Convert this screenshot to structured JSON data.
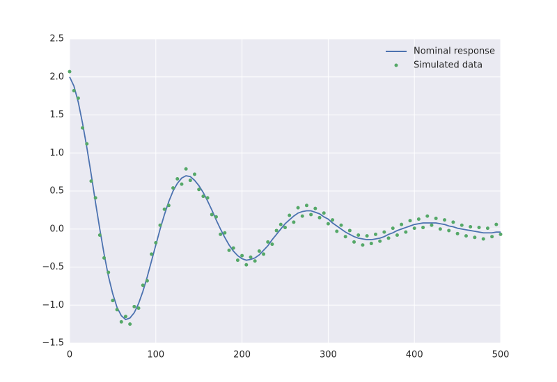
{
  "chart_data": {
    "type": "line",
    "x": [
      0,
      5,
      10,
      15,
      20,
      25,
      30,
      35,
      40,
      45,
      50,
      55,
      60,
      65,
      70,
      75,
      80,
      85,
      90,
      95,
      100,
      105,
      110,
      115,
      120,
      125,
      130,
      135,
      140,
      145,
      150,
      155,
      160,
      165,
      170,
      175,
      180,
      185,
      190,
      195,
      200,
      205,
      210,
      215,
      220,
      225,
      230,
      235,
      240,
      245,
      250,
      255,
      260,
      265,
      270,
      275,
      280,
      285,
      290,
      295,
      300,
      305,
      310,
      315,
      320,
      325,
      330,
      335,
      340,
      345,
      350,
      355,
      360,
      365,
      370,
      375,
      380,
      385,
      390,
      395,
      400,
      405,
      410,
      415,
      420,
      425,
      430,
      435,
      440,
      445,
      450,
      455,
      460,
      465,
      470,
      475,
      480,
      485,
      490,
      495,
      500
    ],
    "series": [
      {
        "name": "Nominal response",
        "style": "line",
        "color": "#4c72b0",
        "values": [
          2.0,
          1.88,
          1.67,
          1.39,
          1.07,
          0.72,
          0.35,
          0,
          -0.33,
          -0.62,
          -0.85,
          -1.03,
          -1.14,
          -1.19,
          -1.17,
          -1.1,
          -0.98,
          -0.82,
          -0.63,
          -0.42,
          -0.21,
          0,
          0.19,
          0.36,
          0.5,
          0.6,
          0.67,
          0.7,
          0.69,
          0.64,
          0.57,
          0.48,
          0.37,
          0.25,
          0.12,
          0,
          -0.11,
          -0.21,
          -0.29,
          -0.35,
          -0.39,
          -0.41,
          -0.4,
          -0.38,
          -0.34,
          -0.28,
          -0.22,
          -0.14,
          -0.07,
          0,
          0.07,
          0.12,
          0.17,
          0.21,
          0.23,
          0.24,
          0.24,
          0.22,
          0.2,
          0.16,
          0.13,
          0.08,
          0.04,
          0,
          -0.04,
          -0.07,
          -0.1,
          -0.12,
          -0.13,
          -0.14,
          -0.14,
          -0.13,
          -0.12,
          -0.1,
          -0.07,
          -0.05,
          -0.02,
          0,
          0.02,
          0.04,
          0.06,
          0.07,
          0.08,
          0.08,
          0.08,
          0.08,
          0.07,
          0.06,
          0.04,
          0.03,
          0.01,
          0,
          -0.01,
          -0.02,
          -0.03,
          -0.04,
          -0.05,
          -0.05,
          -0.05,
          -0.04,
          -0.04
        ]
      },
      {
        "name": "Simulated data",
        "style": "scatter",
        "color": "#55a868",
        "values": [
          2.07,
          1.82,
          1.72,
          1.33,
          1.12,
          0.63,
          0.41,
          -0.08,
          -0.38,
          -0.57,
          -0.94,
          -1.06,
          -1.22,
          -1.15,
          -1.25,
          -1.02,
          -1.04,
          -0.74,
          -0.68,
          -0.33,
          -0.18,
          0.05,
          0.26,
          0.31,
          0.54,
          0.66,
          0.59,
          0.79,
          0.64,
          0.72,
          0.52,
          0.43,
          0.41,
          0.19,
          0.16,
          -0.07,
          -0.05,
          -0.28,
          -0.25,
          -0.41,
          -0.35,
          -0.47,
          -0.37,
          -0.42,
          -0.29,
          -0.33,
          -0.17,
          -0.2,
          -0.02,
          0.06,
          0.02,
          0.18,
          0.09,
          0.28,
          0.17,
          0.31,
          0.19,
          0.27,
          0.15,
          0.21,
          0.07,
          0.12,
          -0.03,
          0.05,
          -0.1,
          -0.02,
          -0.17,
          -0.08,
          -0.21,
          -0.09,
          -0.19,
          -0.07,
          -0.16,
          -0.04,
          -0.12,
          0.01,
          -0.08,
          0.06,
          -0.04,
          0.11,
          0.01,
          0.13,
          0.02,
          0.17,
          0.05,
          0.14,
          0.0,
          0.12,
          -0.02,
          0.09,
          -0.06,
          0.05,
          -0.09,
          0.03,
          -0.11,
          0.02,
          -0.13,
          0.01,
          -0.1,
          0.06,
          -0.07
        ]
      }
    ],
    "xlim": [
      0,
      500
    ],
    "xticks": [
      0,
      100,
      200,
      300,
      400,
      500
    ],
    "ylim": [
      -1.5,
      2.5
    ],
    "yticks": [
      {
        "value": -1.5,
        "label": "−1.5"
      },
      {
        "value": -1,
        "label": "−1.0"
      },
      {
        "value": -0.5,
        "label": "−0.5"
      },
      {
        "value": 0,
        "label": "0.0"
      },
      0.5,
      {
        "value": 1,
        "label": "1.0"
      },
      1.5,
      {
        "value": 2,
        "label": "2.0"
      },
      2.5
    ],
    "grid": true,
    "legend": "upper right",
    "background": "#eaeaf2"
  }
}
